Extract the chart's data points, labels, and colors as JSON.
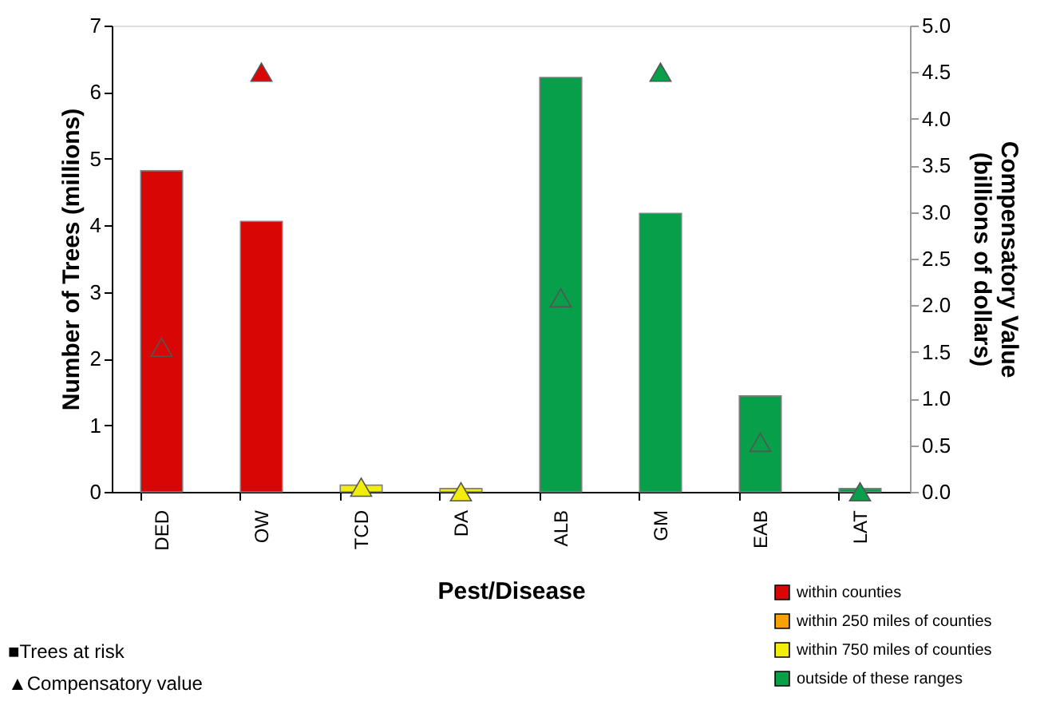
{
  "chart_data": {
    "type": "bar",
    "categories": [
      "DED",
      "OW",
      "TCD",
      "DA",
      "ALB",
      "GM",
      "EAB",
      "LAT"
    ],
    "xlabel": "Pest/Disease",
    "ylabel": "Number of Trees (millions)",
    "y2label": "Compensatory Value\n(billions of dollars)",
    "ylim": [
      0,
      7
    ],
    "yticks": [
      0,
      1,
      2,
      3,
      4,
      5,
      6,
      7
    ],
    "y2lim": [
      0,
      5
    ],
    "y2ticks": [
      {
        "value": 0,
        "label": "0.0"
      },
      {
        "value": 0.5,
        "label": "0.5"
      },
      {
        "value": 1,
        "label": "1.0"
      },
      {
        "value": 1.5,
        "label": "1.5"
      },
      {
        "value": 2,
        "label": "2.0"
      },
      {
        "value": 2.5,
        "label": "2.5"
      },
      {
        "value": 3,
        "label": "3.0"
      },
      {
        "value": 3.5,
        "label": "3.5"
      },
      {
        "value": 4,
        "label": "4.0"
      },
      {
        "value": 4.5,
        "label": "4.5"
      },
      {
        "value": 5,
        "label": "5.0"
      }
    ],
    "series": [
      {
        "name": "within counties",
        "color": "#d90606",
        "values": [
          4.82,
          4.06,
          null,
          null,
          null,
          null,
          null,
          null
        ]
      },
      {
        "name": "within 250 miles of counties",
        "color": "#f7a200",
        "values": [
          null,
          null,
          null,
          null,
          null,
          null,
          null,
          null
        ]
      },
      {
        "name": "within 750 miles of counties",
        "color": "#f2ee0a",
        "values": [
          null,
          null,
          0.1,
          0.05,
          null,
          null,
          null,
          null
        ]
      },
      {
        "name": "outside of these ranges",
        "color": "#079f4a",
        "values": [
          null,
          null,
          null,
          null,
          6.22,
          4.18,
          1.44,
          0.05
        ]
      },
      {
        "type": "scatter",
        "axis": "y2",
        "marker": "triangle",
        "colors": [
          "#d90606",
          "#d90606",
          "#f2ee0a",
          "#f2ee0a",
          "#079f4a",
          "#079f4a",
          "#079f4a",
          "#079f4a"
        ],
        "values": [
          1.55,
          4.5,
          0.05,
          0.0,
          2.08,
          4.5,
          0.53,
          0.0
        ]
      }
    ],
    "legend": "bottom right",
    "grid": false,
    "annotations": [
      "■Trees at risk",
      "▲Compensatory value"
    ]
  }
}
